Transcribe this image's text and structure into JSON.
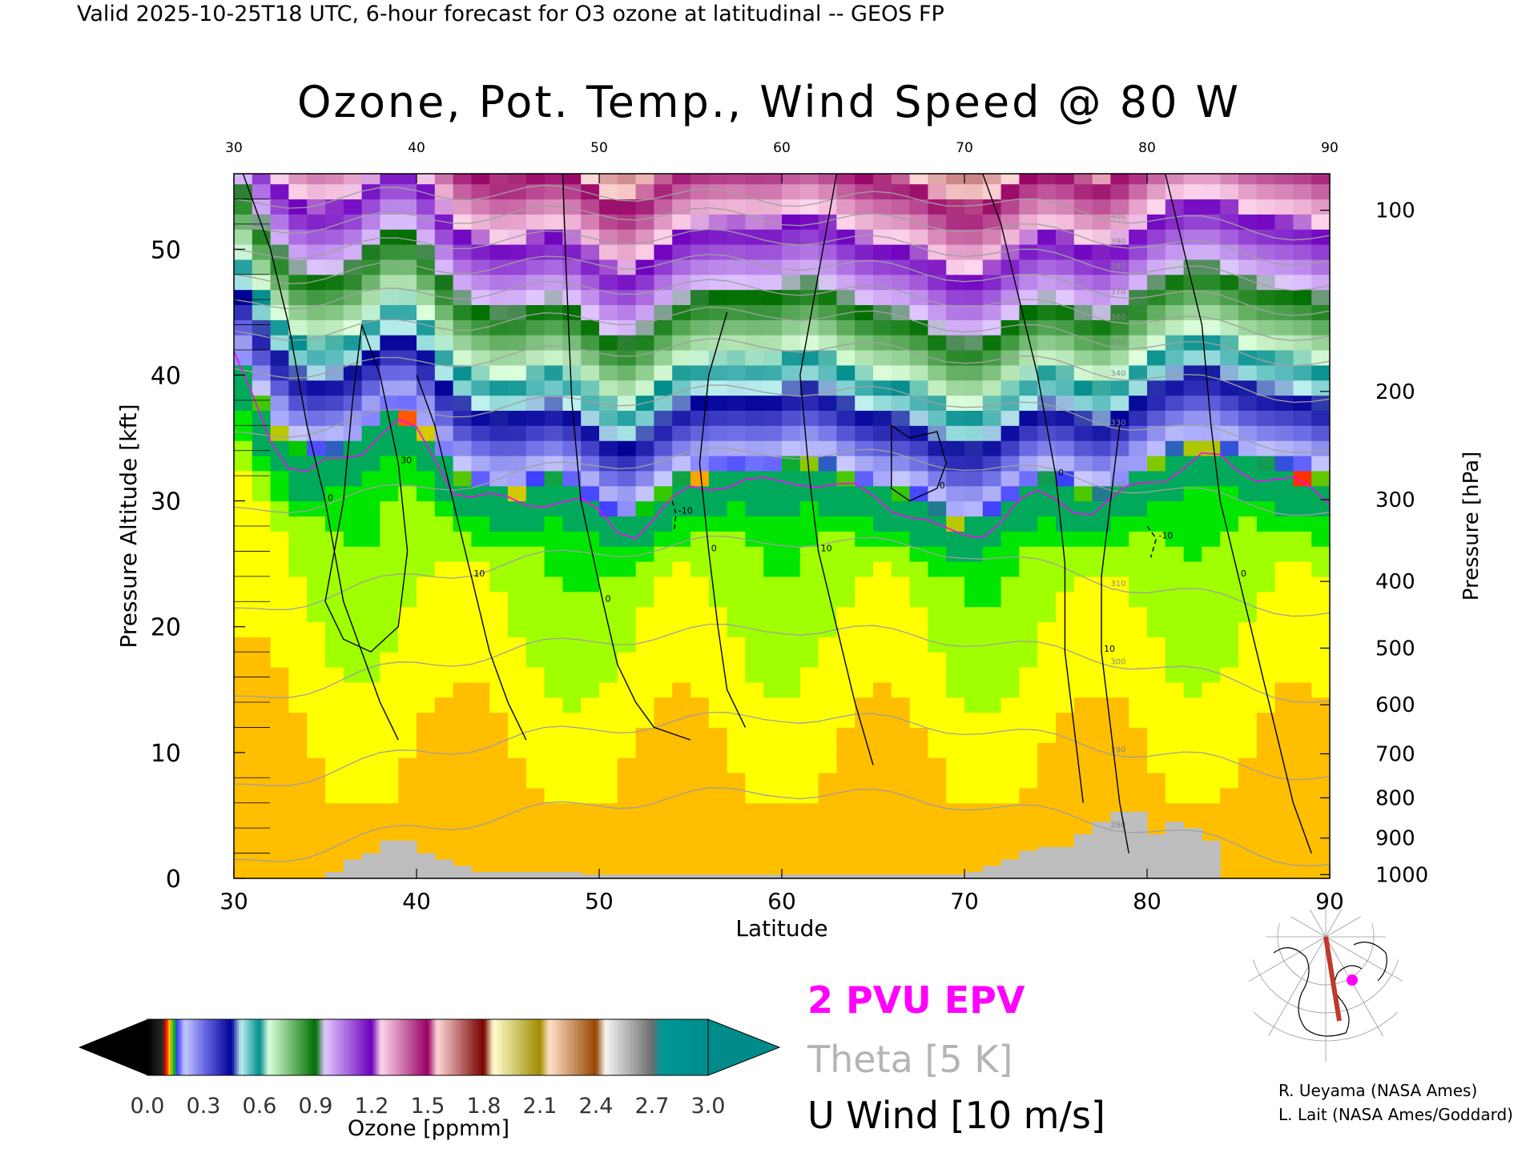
{
  "header": {
    "text": "Valid 2025-10-25T18 UTC, 6-hour forecast for O3 ozone at latitudinal -- GEOS FP"
  },
  "chart_data": {
    "type": "heatmap",
    "title": "Ozone, Pot. Temp., Wind Speed @ 80 W",
    "xlabel": "Latitude",
    "ylabel": "Pressure Altitude [kft]",
    "ylabel_right": "Pressure [hPa]",
    "x_range": [
      30,
      90
    ],
    "y_range": [
      0,
      56
    ],
    "x_ticks": [
      "30",
      "40",
      "50",
      "60",
      "70",
      "80",
      "90"
    ],
    "top_x_ticks": [
      "30",
      "40",
      "50",
      "60",
      "70",
      "80",
      "90"
    ],
    "y_ticks": [
      "0",
      "10",
      "20",
      "30",
      "40",
      "50"
    ],
    "pressure_ticks": [
      {
        "label": "100",
        "kft": 53.1
      },
      {
        "label": "200",
        "kft": 38.7
      },
      {
        "label": "300",
        "kft": 30.1
      },
      {
        "label": "400",
        "kft": 23.6
      },
      {
        "label": "500",
        "kft": 18.3
      },
      {
        "label": "600",
        "kft": 13.8
      },
      {
        "label": "700",
        "kft": 9.9
      },
      {
        "label": "800",
        "kft": 6.4
      },
      {
        "label": "900",
        "kft": 3.2
      },
      {
        "label": "1000",
        "kft": 0.3
      }
    ],
    "tropopause_kft": [
      [
        30,
        42
      ],
      [
        31,
        39
      ],
      [
        32,
        36
      ],
      [
        33,
        34
      ],
      [
        34,
        33
      ],
      [
        35,
        33.5
      ],
      [
        36,
        34
      ],
      [
        37,
        35
      ],
      [
        38,
        36.5
      ],
      [
        39,
        37
      ],
      [
        40,
        36
      ],
      [
        41,
        34
      ],
      [
        42,
        32
      ],
      [
        43,
        31.5
      ],
      [
        44,
        31
      ],
      [
        45,
        30.5
      ],
      [
        46,
        30.5
      ],
      [
        47,
        31
      ],
      [
        48,
        31
      ],
      [
        49,
        30.5
      ],
      [
        50,
        29.5
      ],
      [
        51,
        28.5
      ],
      [
        52,
        28.5
      ],
      [
        53,
        29.5
      ],
      [
        54,
        30.5
      ],
      [
        55,
        31.5
      ],
      [
        56,
        32
      ],
      [
        57,
        32.5
      ],
      [
        58,
        32.5
      ],
      [
        59,
        32
      ],
      [
        60,
        32
      ],
      [
        61,
        32.5
      ],
      [
        62,
        32.5
      ],
      [
        63,
        32
      ],
      [
        64,
        31.5
      ],
      [
        65,
        31
      ],
      [
        66,
        30.5
      ],
      [
        67,
        30
      ],
      [
        68,
        29
      ],
      [
        69,
        28
      ],
      [
        70,
        28
      ],
      [
        71,
        28.5
      ],
      [
        72,
        29.5
      ],
      [
        73,
        30.5
      ],
      [
        74,
        31
      ],
      [
        75,
        31
      ],
      [
        76,
        30.5
      ],
      [
        77,
        30
      ],
      [
        78,
        30.5
      ],
      [
        79,
        31.5
      ],
      [
        80,
        32.5
      ],
      [
        81,
        33
      ],
      [
        82,
        33.5
      ],
      [
        83,
        34
      ],
      [
        84,
        34
      ],
      [
        85,
        33.5
      ],
      [
        86,
        33
      ],
      [
        87,
        32.5
      ],
      [
        88,
        32
      ],
      [
        89,
        31.5
      ],
      [
        90,
        31
      ]
    ],
    "terrain_kft": [
      [
        35,
        0.5
      ],
      [
        36,
        1.5
      ],
      [
        37,
        2
      ],
      [
        38,
        3
      ],
      [
        39,
        3
      ],
      [
        40,
        2
      ],
      [
        41,
        1.5
      ],
      [
        42,
        1
      ],
      [
        43,
        0.5
      ],
      [
        48,
        0.5
      ],
      [
        49,
        0.3
      ],
      [
        70,
        0.5
      ],
      [
        71,
        1
      ],
      [
        72,
        1.5
      ],
      [
        73,
        2.2
      ],
      [
        74,
        2.5
      ],
      [
        75,
        2.5
      ],
      [
        76,
        3.5
      ],
      [
        77,
        4.5
      ],
      [
        78,
        5.3
      ],
      [
        79,
        5.3
      ],
      [
        80,
        3.5
      ],
      [
        81,
        4.5
      ],
      [
        82,
        4
      ],
      [
        83,
        3
      ],
      [
        84,
        1
      ]
    ],
    "theta_contours": [
      {
        "label": "280",
        "levels": [
          [
            30,
            1
          ],
          [
            40,
            4
          ],
          [
            50,
            6
          ],
          [
            60,
            7
          ],
          [
            70,
            6
          ],
          [
            80,
            4
          ],
          [
            90,
            1
          ]
        ]
      },
      {
        "label": "290",
        "levels": [
          [
            30,
            7
          ],
          [
            40,
            10
          ],
          [
            50,
            12
          ],
          [
            60,
            13
          ],
          [
            70,
            12
          ],
          [
            80,
            10
          ],
          [
            90,
            8
          ]
        ]
      },
      {
        "label": "300",
        "levels": [
          [
            30,
            14
          ],
          [
            40,
            17
          ],
          [
            50,
            19
          ],
          [
            60,
            20
          ],
          [
            70,
            19
          ],
          [
            80,
            17
          ],
          [
            90,
            14
          ]
        ]
      },
      {
        "label": "310",
        "levels": [
          [
            30,
            21
          ],
          [
            40,
            24
          ],
          [
            50,
            26
          ],
          [
            60,
            27
          ],
          [
            70,
            26
          ],
          [
            80,
            23
          ],
          [
            90,
            21
          ]
        ]
      },
      {
        "label": "320",
        "levels": [
          [
            30,
            29
          ],
          [
            40,
            31
          ],
          [
            50,
            33
          ],
          [
            60,
            34
          ],
          [
            70,
            33
          ],
          [
            80,
            31
          ],
          [
            90,
            29
          ]
        ]
      },
      {
        "label": "330",
        "levels": [
          [
            30,
            35
          ],
          [
            40,
            37
          ],
          [
            50,
            38
          ],
          [
            60,
            39
          ],
          [
            70,
            38
          ],
          [
            80,
            36
          ],
          [
            90,
            34
          ]
        ]
      },
      {
        "label": "340",
        "levels": [
          [
            30,
            40
          ],
          [
            40,
            41
          ],
          [
            50,
            42
          ],
          [
            60,
            42.5
          ],
          [
            70,
            41.5
          ],
          [
            80,
            40
          ],
          [
            90,
            38
          ]
        ]
      },
      {
        "label": "350",
        "levels": [
          [
            30,
            43
          ],
          [
            40,
            44
          ],
          [
            50,
            44.5
          ],
          [
            60,
            45
          ],
          [
            70,
            44
          ],
          [
            80,
            42.5
          ],
          [
            90,
            41
          ]
        ]
      },
      {
        "label": "360",
        "levels": [
          [
            30,
            45.5
          ],
          [
            40,
            46.5
          ],
          [
            50,
            47
          ],
          [
            60,
            47
          ],
          [
            70,
            46
          ],
          [
            80,
            44.5
          ],
          [
            90,
            43
          ]
        ]
      },
      {
        "label": "370",
        "levels": [
          [
            30,
            47.5
          ],
          [
            40,
            48.5
          ],
          [
            50,
            49
          ],
          [
            60,
            49
          ],
          [
            70,
            48
          ],
          [
            80,
            46.5
          ],
          [
            90,
            45
          ]
        ]
      },
      {
        "label": "380",
        "levels": [
          [
            30,
            49.5
          ],
          [
            40,
            50.5
          ],
          [
            50,
            51
          ],
          [
            60,
            51
          ],
          [
            70,
            50
          ],
          [
            80,
            48.5
          ],
          [
            90,
            47
          ]
        ]
      },
      {
        "label": "390",
        "levels": [
          [
            30,
            51.5
          ],
          [
            40,
            52.5
          ],
          [
            50,
            53
          ],
          [
            60,
            52.5
          ],
          [
            70,
            52
          ],
          [
            80,
            50.5
          ],
          [
            90,
            49
          ]
        ]
      },
      {
        "label": "400",
        "levels": [
          [
            30,
            53.5
          ],
          [
            40,
            54.5
          ],
          [
            50,
            54.5
          ],
          [
            60,
            54
          ],
          [
            70,
            54
          ],
          [
            80,
            52.5
          ],
          [
            90,
            51
          ]
        ]
      }
    ],
    "uwind_contours": [
      {
        "label": "0",
        "points": [
          [
            30.5,
            56
          ],
          [
            32,
            50
          ],
          [
            33,
            44
          ],
          [
            34,
            36
          ],
          [
            35,
            30
          ],
          [
            36,
            22
          ],
          [
            37,
            18
          ],
          [
            38,
            14
          ],
          [
            39,
            11
          ]
        ]
      },
      {
        "label": "30",
        "points": [
          [
            35,
            22
          ],
          [
            36,
            30
          ],
          [
            36.5,
            38
          ],
          [
            37,
            44
          ],
          [
            38,
            40
          ],
          [
            39,
            33
          ],
          [
            39.5,
            26
          ],
          [
            39,
            20
          ],
          [
            37.5,
            18
          ],
          [
            36,
            19
          ],
          [
            35,
            22
          ]
        ]
      },
      {
        "label": "10",
        "points": [
          [
            40,
            40
          ],
          [
            41,
            36
          ],
          [
            42,
            30
          ],
          [
            43,
            24
          ],
          [
            44,
            18
          ],
          [
            45,
            14
          ],
          [
            46,
            11
          ]
        ]
      },
      {
        "label": "0",
        "points": [
          [
            48,
            56
          ],
          [
            48.2,
            48
          ],
          [
            48.5,
            38
          ],
          [
            49,
            30
          ],
          [
            50.2,
            22
          ],
          [
            51,
            17
          ],
          [
            52,
            14
          ],
          [
            53,
            12
          ],
          [
            55,
            11
          ]
        ]
      },
      {
        "label": "-10",
        "points": [
          [
            54,
            30
          ],
          [
            54.2,
            29
          ],
          [
            54.1,
            27.5
          ]
        ]
      },
      {
        "label": "0",
        "points": [
          [
            57,
            45
          ],
          [
            56,
            40
          ],
          [
            55.5,
            33
          ],
          [
            56,
            26
          ],
          [
            56.5,
            20
          ],
          [
            57,
            15
          ],
          [
            58,
            12
          ]
        ]
      },
      {
        "label": "10",
        "points": [
          [
            63,
            56
          ],
          [
            62,
            48
          ],
          [
            61,
            40
          ],
          [
            61.5,
            32
          ],
          [
            62,
            26
          ],
          [
            63,
            20
          ],
          [
            64,
            14
          ],
          [
            65,
            9
          ]
        ]
      },
      {
        "label": "0",
        "points": [
          [
            66,
            36
          ],
          [
            67,
            35
          ],
          [
            68.5,
            35.5
          ],
          [
            69,
            33
          ],
          [
            68.5,
            31
          ],
          [
            67,
            30
          ],
          [
            66,
            31
          ],
          [
            66,
            36
          ]
        ]
      },
      {
        "label": "0",
        "points": [
          [
            71,
            56
          ],
          [
            72,
            52
          ],
          [
            73,
            46
          ],
          [
            74,
            40
          ],
          [
            75,
            32
          ],
          [
            75.5,
            25
          ],
          [
            75.5,
            18
          ],
          [
            76,
            12
          ],
          [
            76.5,
            6
          ]
        ]
      },
      {
        "label": "-10",
        "points": [
          [
            80,
            28
          ],
          [
            80.5,
            27
          ],
          [
            80.2,
            25.5
          ]
        ]
      },
      {
        "label": "0",
        "points": [
          [
            81,
            56
          ],
          [
            82,
            50
          ],
          [
            83,
            44
          ],
          [
            83.5,
            36
          ],
          [
            84,
            30
          ],
          [
            85,
            24
          ],
          [
            86,
            18
          ],
          [
            87,
            12
          ],
          [
            88,
            6
          ],
          [
            89,
            2
          ]
        ]
      },
      {
        "label": "10",
        "points": [
          [
            78.5,
            36
          ],
          [
            78,
            30
          ],
          [
            77.5,
            24
          ],
          [
            77.5,
            18
          ],
          [
            78,
            12
          ],
          [
            78.5,
            6
          ],
          [
            79,
            2
          ]
        ]
      }
    ],
    "epv_label": "2 PVU EPV",
    "theta_label": "Theta [5 K]",
    "uwind_label": "U Wind [10 m/s]",
    "colorbar": {
      "label": "Ozone [ppmm]",
      "ticks": [
        "0.0",
        "0.3",
        "0.6",
        "0.9",
        "1.2",
        "1.5",
        "1.8",
        "2.1",
        "2.4",
        "2.7",
        "3.0"
      ],
      "range": [
        0,
        3.0
      ]
    },
    "colors": {
      "terrain": "#bdbdbd",
      "epv_line": "#ff00ff",
      "theta_line": "#a0a0a0",
      "uwind_line": "#000000",
      "section_line": "#c0392b",
      "map_marker": "#ff00ff"
    }
  },
  "map": {
    "description_icon": "globe-map-icon"
  },
  "credits": {
    "line1": "R. Ueyama (NASA Ames)",
    "line2": "L. Lait (NASA Ames/Goddard)"
  }
}
